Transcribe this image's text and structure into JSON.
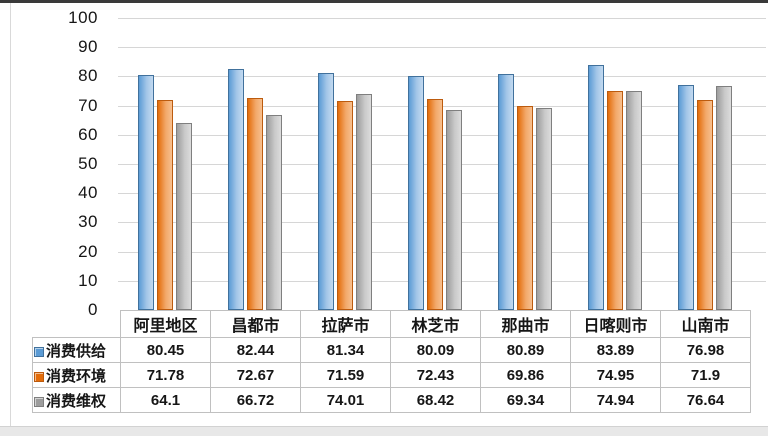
{
  "chart_data": {
    "type": "bar",
    "title": "",
    "xlabel": "",
    "ylabel": "",
    "categories": [
      "阿里地区",
      "昌都市",
      "拉萨市",
      "林芝市",
      "那曲市",
      "日喀则市",
      "山南市"
    ],
    "series": [
      {
        "name": "消费供给",
        "values": [
          80.45,
          82.44,
          81.34,
          80.09,
          80.89,
          83.89,
          76.98
        ],
        "fill_dark": "#5B9BD5",
        "fill_light": "#C3DAF0",
        "fill_mid": "#A3C6E8",
        "border": "#41719C"
      },
      {
        "name": "消费环境",
        "values": [
          71.78,
          72.67,
          71.59,
          72.43,
          69.86,
          74.95,
          71.9
        ],
        "fill_dark": "#E36C0A",
        "fill_light": "#F7C08F",
        "fill_mid": "#F2A869",
        "border": "#BC5B0E"
      },
      {
        "name": "消费维权",
        "values": [
          64.1,
          66.72,
          74.01,
          68.42,
          69.34,
          74.94,
          76.64
        ],
        "fill_dark": "#9D9D9D",
        "fill_light": "#DCDCDC",
        "fill_mid": "#C9C9C9",
        "border": "#7F7F7F"
      }
    ],
    "ylim": [
      0,
      100
    ],
    "yticks": [
      0,
      10,
      20,
      30,
      40,
      50,
      60,
      70,
      80,
      90,
      100
    ],
    "grid": true,
    "gridline_color": "#D6D6D6",
    "legend_position": "data-table-left-column",
    "data_table_shown": true
  },
  "scan_artifacts": {
    "top_edge_color": "#3a3a3a",
    "side_edge_color": "#d9d9d9",
    "bottom_strip_color": "#e8e8e8"
  }
}
